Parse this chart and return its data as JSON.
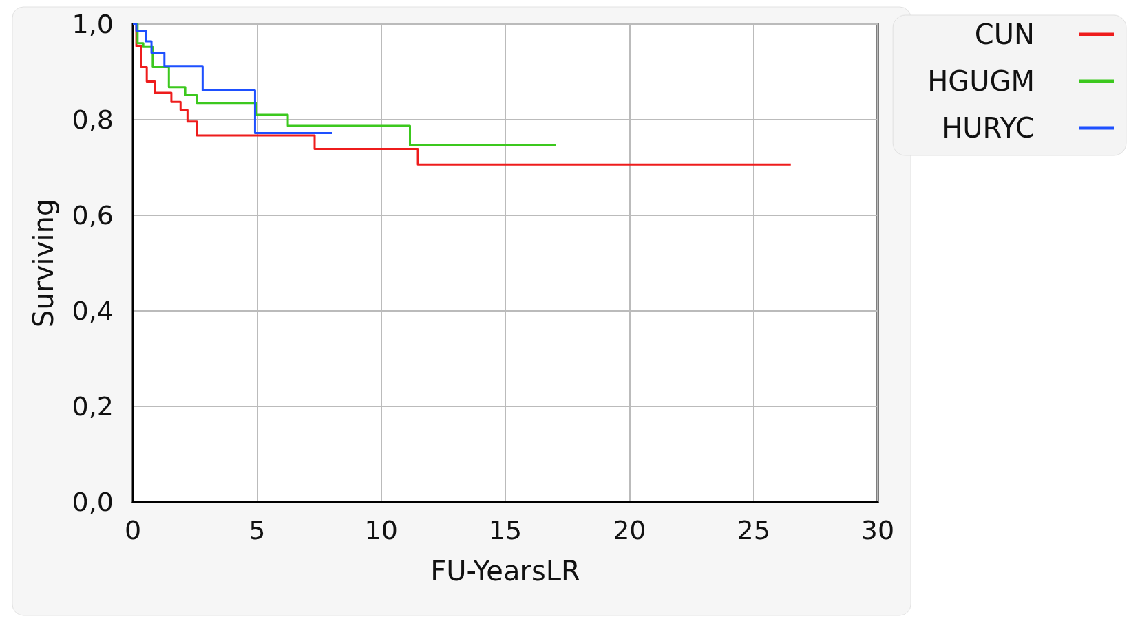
{
  "chart_data": {
    "type": "step",
    "xlabel": "FU-YearsLR",
    "ylabel": "Surviving",
    "xlim": [
      0,
      30
    ],
    "xticks": [
      0,
      5,
      10,
      15,
      20,
      25,
      30
    ],
    "ylim": [
      0,
      1
    ],
    "yticks": [
      {
        "value": 0,
        "label": "0,0"
      },
      {
        "value": 0.2,
        "label": "0,2"
      },
      {
        "value": 0.4,
        "label": "0,4"
      },
      {
        "value": 0.6,
        "label": "0,6"
      },
      {
        "value": 0.8,
        "label": "0,8"
      },
      {
        "value": 1,
        "label": "1,0"
      }
    ],
    "grid": true,
    "legend": "top right",
    "marker": "none",
    "series": [
      {
        "name": "CUN",
        "color": "#ee1c1c",
        "x": [
          0,
          0.14,
          0.33,
          0.56,
          0.89,
          1.55,
          1.92,
          2.2,
          2.58,
          7.32,
          11.48,
          26.5
        ],
        "values": [
          1,
          0.954,
          0.91,
          0.88,
          0.856,
          0.837,
          0.82,
          0.796,
          0.767,
          0.739,
          0.706,
          0.706
        ]
      },
      {
        "name": "HGUGM",
        "color": "#3cc81e",
        "x": [
          0,
          0.19,
          0.42,
          0.8,
          1.45,
          2.11,
          2.58,
          4.97,
          6.24,
          11.16,
          17.05
        ],
        "values": [
          1,
          0.96,
          0.952,
          0.91,
          0.868,
          0.851,
          0.835,
          0.81,
          0.787,
          0.746,
          0.746
        ]
      },
      {
        "name": "HURYC",
        "color": "#1e50ff",
        "x": [
          0,
          0.14,
          0.52,
          0.75,
          1.27,
          2.81,
          4.92,
          8.02
        ],
        "values": [
          1,
          0.986,
          0.964,
          0.94,
          0.911,
          0.861,
          0.772,
          0.772
        ]
      }
    ]
  }
}
